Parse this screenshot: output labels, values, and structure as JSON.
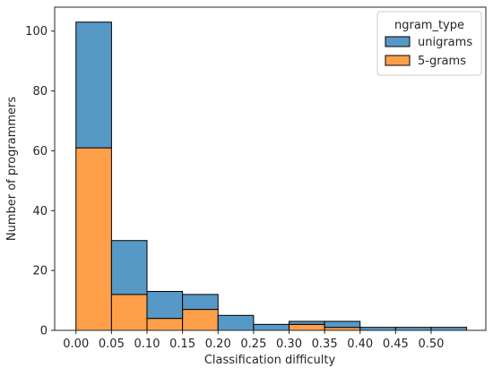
{
  "chart_data": {
    "type": "bar",
    "stacked": true,
    "title": "",
    "xlabel": "Classification difficulty",
    "ylabel": "Number of programmers",
    "bin_edges": [
      0.0,
      0.05,
      0.1,
      0.15,
      0.2,
      0.25,
      0.3,
      0.35,
      0.4,
      0.45,
      0.5,
      0.55
    ],
    "xlim": [
      -0.03,
      0.577
    ],
    "ylim": [
      0,
      108
    ],
    "xticks": [
      0.0,
      0.05,
      0.1,
      0.15,
      0.2,
      0.25,
      0.3,
      0.35,
      0.4,
      0.45,
      0.5
    ],
    "xtick_labels": [
      "0.00",
      "0.05",
      "0.10",
      "0.15",
      "0.20",
      "0.25",
      "0.30",
      "0.35",
      "0.40",
      "0.45",
      "0.50"
    ],
    "yticks": [
      0,
      20,
      40,
      60,
      80,
      100
    ],
    "ytick_labels": [
      "0",
      "20",
      "40",
      "60",
      "80",
      "100"
    ],
    "grid": false,
    "legend": {
      "title": "ngram_type",
      "position": "top-right"
    },
    "series": [
      {
        "name": "5-grams",
        "color": "#ff9f4a",
        "values": [
          61,
          12,
          4,
          7,
          0,
          0,
          2,
          1,
          0,
          0,
          0
        ]
      },
      {
        "name": "unigrams",
        "color": "#5699c7",
        "values": [
          42,
          18,
          9,
          5,
          5,
          2,
          1,
          2,
          1,
          1,
          1
        ]
      }
    ],
    "legend_order": [
      "unigrams",
      "5-grams"
    ]
  }
}
